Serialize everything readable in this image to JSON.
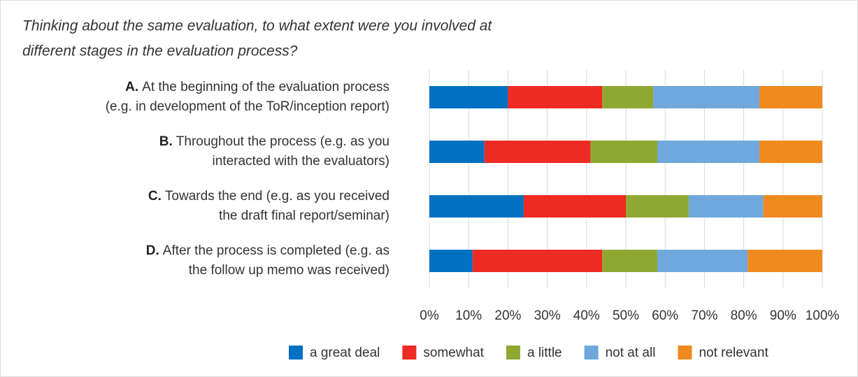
{
  "chart_data": {
    "type": "stacked_barh",
    "title": [
      "Thinking about the same evaluation, to what extent were you involved at",
      "different stages in the evaluation process?"
    ],
    "categories": [
      [
        "A.",
        "At the beginning of the evaluation process",
        "(e.g. in development of the ToR/inception report)"
      ],
      [
        "B.",
        "Throughout the process (e.g. as you",
        "interacted with the evaluators)"
      ],
      [
        "C.",
        "Towards the end (e.g. as you received",
        "the draft final report/seminar)"
      ],
      [
        "D.",
        "After the process is completed (e.g. as",
        "the follow up memo was received)"
      ]
    ],
    "series": [
      {
        "name": "a great deal",
        "color": "#0070c0",
        "values": [
          20,
          14,
          24,
          11
        ]
      },
      {
        "name": "somewhat",
        "color": "#ee2a24",
        "values": [
          24,
          27,
          26,
          33
        ]
      },
      {
        "name": "a little",
        "color": "#8fa832",
        "values": [
          13,
          17,
          16,
          14
        ]
      },
      {
        "name": "not at all",
        "color": "#6fa8dc",
        "values": [
          27,
          26,
          19,
          23
        ]
      },
      {
        "name": "not relevant",
        "color": "#ee8a1e",
        "values": [
          16,
          16,
          15,
          19
        ]
      }
    ],
    "xlim": [
      0,
      100
    ],
    "xticks": [
      {
        "value": 0,
        "label": "0%"
      },
      {
        "value": 10,
        "label": "10%"
      },
      {
        "value": 20,
        "label": "20%"
      },
      {
        "value": 30,
        "label": "30%"
      },
      {
        "value": 40,
        "label": "40%"
      },
      {
        "value": 50,
        "label": "50%"
      },
      {
        "value": 60,
        "label": "60%"
      },
      {
        "value": 70,
        "label": "70%"
      },
      {
        "value": 80,
        "label": "80%"
      },
      {
        "value": 90,
        "label": "90%"
      },
      {
        "value": 100,
        "label": "100%"
      }
    ],
    "grid": true,
    "legend": "bottom"
  }
}
